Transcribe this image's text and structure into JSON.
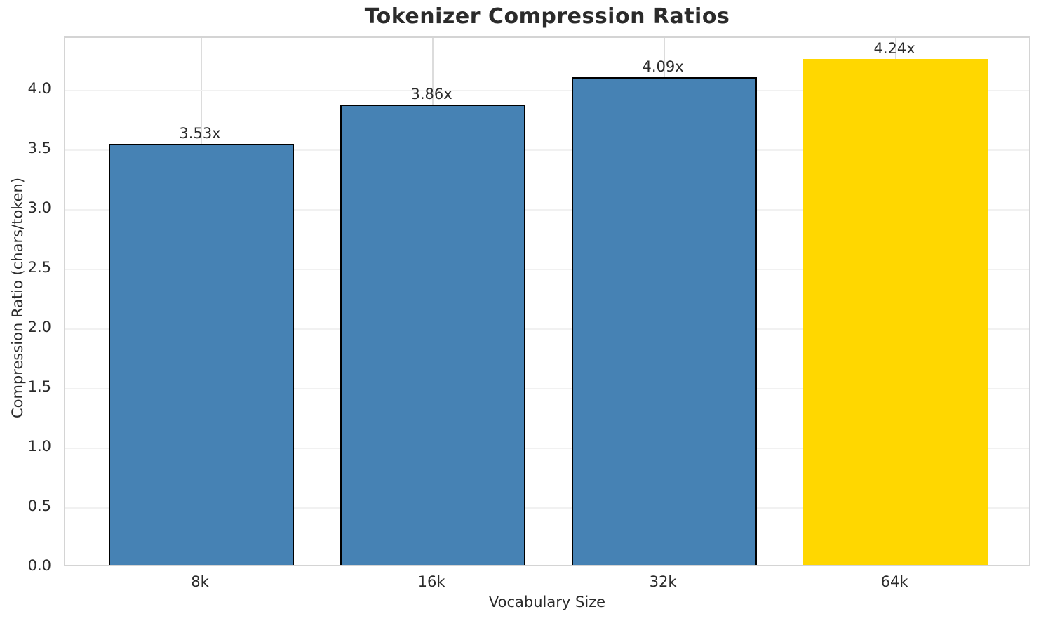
{
  "chart_data": {
    "type": "bar",
    "title": "Tokenizer Compression Ratios",
    "xlabel": "Vocabulary Size",
    "ylabel": "Compression Ratio (chars/token)",
    "categories": [
      "8k",
      "16k",
      "32k",
      "64k"
    ],
    "values": [
      3.53,
      3.86,
      4.09,
      4.24
    ],
    "bar_labels": [
      "3.53x",
      "3.86x",
      "4.09x",
      "4.24x"
    ],
    "bar_colors": [
      "#4682B4",
      "#4682B4",
      "#4682B4",
      "#FFD700"
    ],
    "bar_edged": [
      true,
      true,
      true,
      false
    ],
    "base_bar_color": "#4682B4",
    "highlight_bar_color": "#FFD700",
    "bar_edge_color": "#000000",
    "ylim": [
      0,
      4.44
    ],
    "yticks": [
      0.0,
      0.5,
      1.0,
      1.5,
      2.0,
      2.5,
      3.0,
      3.5,
      4.0
    ],
    "ytick_labels": [
      "0.0",
      "0.5",
      "1.0",
      "1.5",
      "2.0",
      "2.5",
      "3.0",
      "3.5",
      "4.0"
    ],
    "grid": true,
    "grid_horizontal_color": "#f1f1f1",
    "grid_vertical_color": "#dcdcdc",
    "legend": "none"
  }
}
